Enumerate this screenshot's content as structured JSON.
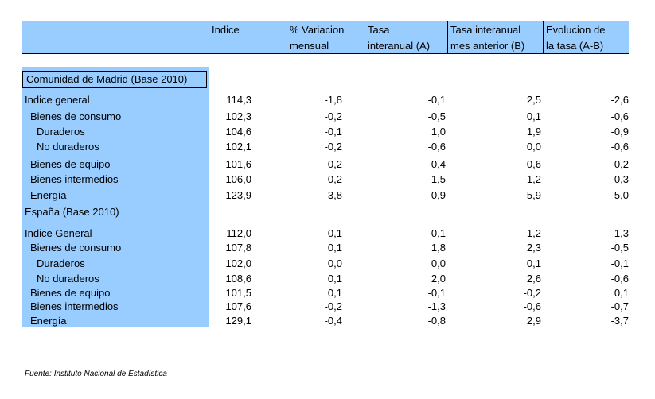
{
  "header": {
    "indice": "Indice",
    "variacion": [
      "% Variacion",
      "mensual"
    ],
    "tasa": [
      "Tasa",
      "interanual (A)"
    ],
    "tasa_anterior": [
      "Tasa interanual",
      "mes anterior (B)"
    ],
    "evolucion": [
      "Evolucion de",
      "la tasa (A-B)"
    ]
  },
  "madrid": {
    "title": "Comunidad de Madrid (Base 2010)",
    "rows": [
      {
        "label": "Indice general",
        "indice": "114,3",
        "variacion": "-1,8",
        "tasa": "-0,1",
        "tasa_anterior": "2,5",
        "evolucion": "-2,6"
      },
      {
        "label": "Bienes de consumo",
        "indice": "102,3",
        "variacion": "-0,2",
        "tasa": "-0,5",
        "tasa_anterior": "0,1",
        "evolucion": "-0,6"
      },
      {
        "label": "Duraderos",
        "indice": "104,6",
        "variacion": "-0,1",
        "tasa": "1,0",
        "tasa_anterior": "1,9",
        "evolucion": "-0,9"
      },
      {
        "label": "No duraderos",
        "indice": "102,1",
        "variacion": "-0,2",
        "tasa": "-0,6",
        "tasa_anterior": "0,0",
        "evolucion": "-0,6"
      },
      {
        "label": "Bienes de equipo",
        "indice": "101,6",
        "variacion": "0,2",
        "tasa": "-0,4",
        "tasa_anterior": "-0,6",
        "evolucion": "0,2"
      },
      {
        "label": "Bienes intermedios",
        "indice": "106,0",
        "variacion": "0,2",
        "tasa": "-1,5",
        "tasa_anterior": "-1,2",
        "evolucion": "-0,3"
      },
      {
        "label": "Energía",
        "indice": "123,9",
        "variacion": "-3,8",
        "tasa": "0,9",
        "tasa_anterior": "5,9",
        "evolucion": "-5,0"
      }
    ]
  },
  "espana": {
    "title": "España (Base 2010)",
    "rows": [
      {
        "label": "Indice General",
        "indice": "112,0",
        "variacion": "-0,1",
        "tasa": "-0,1",
        "tasa_anterior": "1,2",
        "evolucion": "-1,3"
      },
      {
        "label": "Bienes de consumo",
        "indice": "107,8",
        "variacion": "0,1",
        "tasa": "1,8",
        "tasa_anterior": "2,3",
        "evolucion": "-0,5"
      },
      {
        "label": "Duraderos",
        "indice": "102,0",
        "variacion": "0,0",
        "tasa": "0,0",
        "tasa_anterior": "0,1",
        "evolucion": "-0,1"
      },
      {
        "label": "No duraderos",
        "indice": "108,6",
        "variacion": "0,1",
        "tasa": "2,0",
        "tasa_anterior": "2,6",
        "evolucion": "-0,6"
      },
      {
        "label": "Bienes de equipo",
        "indice": "101,5",
        "variacion": "0,1",
        "tasa": "-0,1",
        "tasa_anterior": "-0,2",
        "evolucion": "0,1"
      },
      {
        "label": "Bienes intermedios",
        "indice": "107,6",
        "variacion": "-0,2",
        "tasa": "-1,3",
        "tasa_anterior": "-0,6",
        "evolucion": "-0,7"
      },
      {
        "label": "Energía",
        "indice": "129,1",
        "variacion": "-0,4",
        "tasa": "-0,8",
        "tasa_anterior": "2,9",
        "evolucion": "-3,7"
      }
    ]
  },
  "footer": {
    "source": "Fuente: Instituto Nacional de Estadística"
  },
  "colors": {
    "header_bg": "#99ccff",
    "label_column_bg": "#99ccff"
  }
}
